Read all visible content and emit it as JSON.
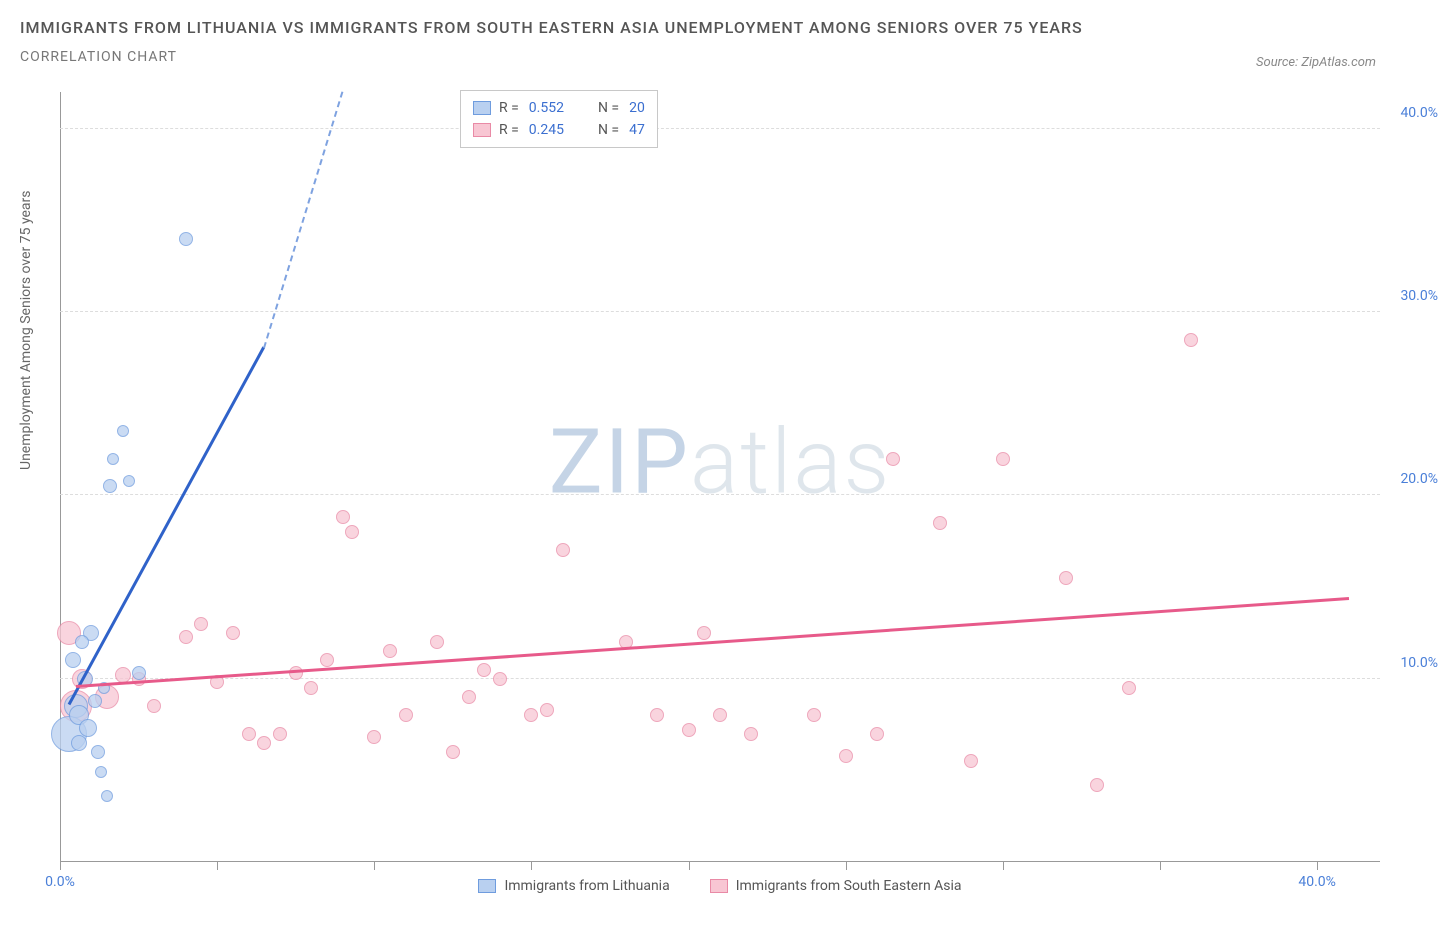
{
  "title": "IMMIGRANTS FROM LITHUANIA VS IMMIGRANTS FROM SOUTH EASTERN ASIA UNEMPLOYMENT AMONG SENIORS OVER 75 YEARS",
  "subtitle": "CORRELATION CHART",
  "source_label": "Source: ZipAtlas.com",
  "y_axis_title": "Unemployment Among Seniors over 75 years",
  "watermark_a": "ZIP",
  "watermark_b": "atlas",
  "chart": {
    "xlim": [
      0,
      42
    ],
    "ylim": [
      0,
      42
    ],
    "x_ticks": [
      0,
      5,
      10,
      15,
      20,
      25,
      30,
      35,
      40
    ],
    "y_gridlines": [
      10,
      20,
      30,
      40
    ],
    "y_tick_labels": {
      "10": "10.0%",
      "20": "20.0%",
      "30": "30.0%",
      "40": "40.0%"
    },
    "x_tick_labels": {
      "0": "0.0%",
      "40": "40.0%"
    },
    "background_color": "#ffffff",
    "grid_color": "#dddddd",
    "axis_color": "#999999",
    "label_color": "#4a7fd8",
    "label_fontsize": 14
  },
  "series": {
    "a": {
      "name": "Immigrants from Lithuania",
      "fill": "#b9d0f0",
      "stroke": "#6f9cde",
      "trend_color": "#2f62c9",
      "trend_dash_color": "#7ea2e0",
      "R": "0.552",
      "N": "20",
      "points": [
        {
          "x": 0.3,
          "y": 7.0,
          "r": 18
        },
        {
          "x": 0.5,
          "y": 8.5,
          "r": 12
        },
        {
          "x": 0.6,
          "y": 8.0,
          "r": 10
        },
        {
          "x": 0.8,
          "y": 10.0,
          "r": 8
        },
        {
          "x": 1.0,
          "y": 12.5,
          "r": 8
        },
        {
          "x": 1.2,
          "y": 6.0,
          "r": 7
        },
        {
          "x": 1.3,
          "y": 4.9,
          "r": 6
        },
        {
          "x": 1.5,
          "y": 3.6,
          "r": 6
        },
        {
          "x": 1.6,
          "y": 20.5,
          "r": 7
        },
        {
          "x": 1.7,
          "y": 22.0,
          "r": 6
        },
        {
          "x": 2.0,
          "y": 23.5,
          "r": 6
        },
        {
          "x": 2.2,
          "y": 20.8,
          "r": 6
        },
        {
          "x": 2.5,
          "y": 10.3,
          "r": 7
        },
        {
          "x": 4.0,
          "y": 34.0,
          "r": 7
        },
        {
          "x": 0.9,
          "y": 7.3,
          "r": 9
        },
        {
          "x": 0.7,
          "y": 12.0,
          "r": 7
        },
        {
          "x": 1.1,
          "y": 8.8,
          "r": 7
        },
        {
          "x": 1.4,
          "y": 9.5,
          "r": 6
        },
        {
          "x": 0.4,
          "y": 11.0,
          "r": 8
        },
        {
          "x": 0.6,
          "y": 6.5,
          "r": 8
        }
      ],
      "trend": {
        "x1": 0.3,
        "y1": 8.5,
        "x2": 6.5,
        "y2": 28.0,
        "dash_x2": 9.0,
        "dash_y2": 42.0
      }
    },
    "b": {
      "name": "Immigrants from South Eastern Asia",
      "fill": "#f8c6d3",
      "stroke": "#e98aa6",
      "trend_color": "#e75a8a",
      "R": "0.245",
      "N": "47",
      "points": [
        {
          "x": 0.3,
          "y": 12.5,
          "r": 12
        },
        {
          "x": 0.5,
          "y": 8.5,
          "r": 16
        },
        {
          "x": 0.7,
          "y": 10.0,
          "r": 10
        },
        {
          "x": 1.5,
          "y": 9.0,
          "r": 12
        },
        {
          "x": 2.0,
          "y": 10.2,
          "r": 8
        },
        {
          "x": 2.5,
          "y": 10.0,
          "r": 7
        },
        {
          "x": 3.0,
          "y": 8.5,
          "r": 7
        },
        {
          "x": 4.0,
          "y": 12.3,
          "r": 7
        },
        {
          "x": 4.5,
          "y": 13.0,
          "r": 7
        },
        {
          "x": 5.0,
          "y": 9.8,
          "r": 7
        },
        {
          "x": 5.5,
          "y": 12.5,
          "r": 7
        },
        {
          "x": 6.0,
          "y": 7.0,
          "r": 7
        },
        {
          "x": 6.5,
          "y": 6.5,
          "r": 7
        },
        {
          "x": 7.0,
          "y": 7.0,
          "r": 7
        },
        {
          "x": 7.5,
          "y": 10.3,
          "r": 7
        },
        {
          "x": 8.0,
          "y": 9.5,
          "r": 7
        },
        {
          "x": 8.5,
          "y": 11.0,
          "r": 7
        },
        {
          "x": 9.0,
          "y": 18.8,
          "r": 7
        },
        {
          "x": 9.3,
          "y": 18.0,
          "r": 7
        },
        {
          "x": 10.0,
          "y": 6.8,
          "r": 7
        },
        {
          "x": 10.5,
          "y": 11.5,
          "r": 7
        },
        {
          "x": 11.0,
          "y": 8.0,
          "r": 7
        },
        {
          "x": 12.0,
          "y": 12.0,
          "r": 7
        },
        {
          "x": 12.5,
          "y": 6.0,
          "r": 7
        },
        {
          "x": 13.0,
          "y": 9.0,
          "r": 7
        },
        {
          "x": 13.5,
          "y": 10.5,
          "r": 7
        },
        {
          "x": 14.0,
          "y": 10.0,
          "r": 7
        },
        {
          "x": 15.0,
          "y": 8.0,
          "r": 7
        },
        {
          "x": 15.5,
          "y": 8.3,
          "r": 7
        },
        {
          "x": 16.0,
          "y": 17.0,
          "r": 7
        },
        {
          "x": 18.0,
          "y": 12.0,
          "r": 7
        },
        {
          "x": 19.0,
          "y": 8.0,
          "r": 7
        },
        {
          "x": 20.0,
          "y": 7.2,
          "r": 7
        },
        {
          "x": 20.5,
          "y": 12.5,
          "r": 7
        },
        {
          "x": 21.0,
          "y": 8.0,
          "r": 7
        },
        {
          "x": 22.0,
          "y": 7.0,
          "r": 7
        },
        {
          "x": 24.0,
          "y": 8.0,
          "r": 7
        },
        {
          "x": 25.0,
          "y": 5.8,
          "r": 7
        },
        {
          "x": 26.0,
          "y": 7.0,
          "r": 7
        },
        {
          "x": 26.5,
          "y": 22.0,
          "r": 7
        },
        {
          "x": 28.0,
          "y": 18.5,
          "r": 7
        },
        {
          "x": 29.0,
          "y": 5.5,
          "r": 7
        },
        {
          "x": 30.0,
          "y": 22.0,
          "r": 7
        },
        {
          "x": 32.0,
          "y": 15.5,
          "r": 7
        },
        {
          "x": 33.0,
          "y": 4.2,
          "r": 7
        },
        {
          "x": 34.0,
          "y": 9.5,
          "r": 7
        },
        {
          "x": 36.0,
          "y": 28.5,
          "r": 7
        }
      ],
      "trend": {
        "x1": 0.5,
        "y1": 9.5,
        "x2": 41.0,
        "y2": 14.3
      }
    }
  },
  "legend_top": {
    "r_label": "R =",
    "n_label": "N ="
  },
  "bottom_legend": {
    "a": "Immigrants from Lithuania",
    "b": "Immigrants from South Eastern Asia"
  }
}
